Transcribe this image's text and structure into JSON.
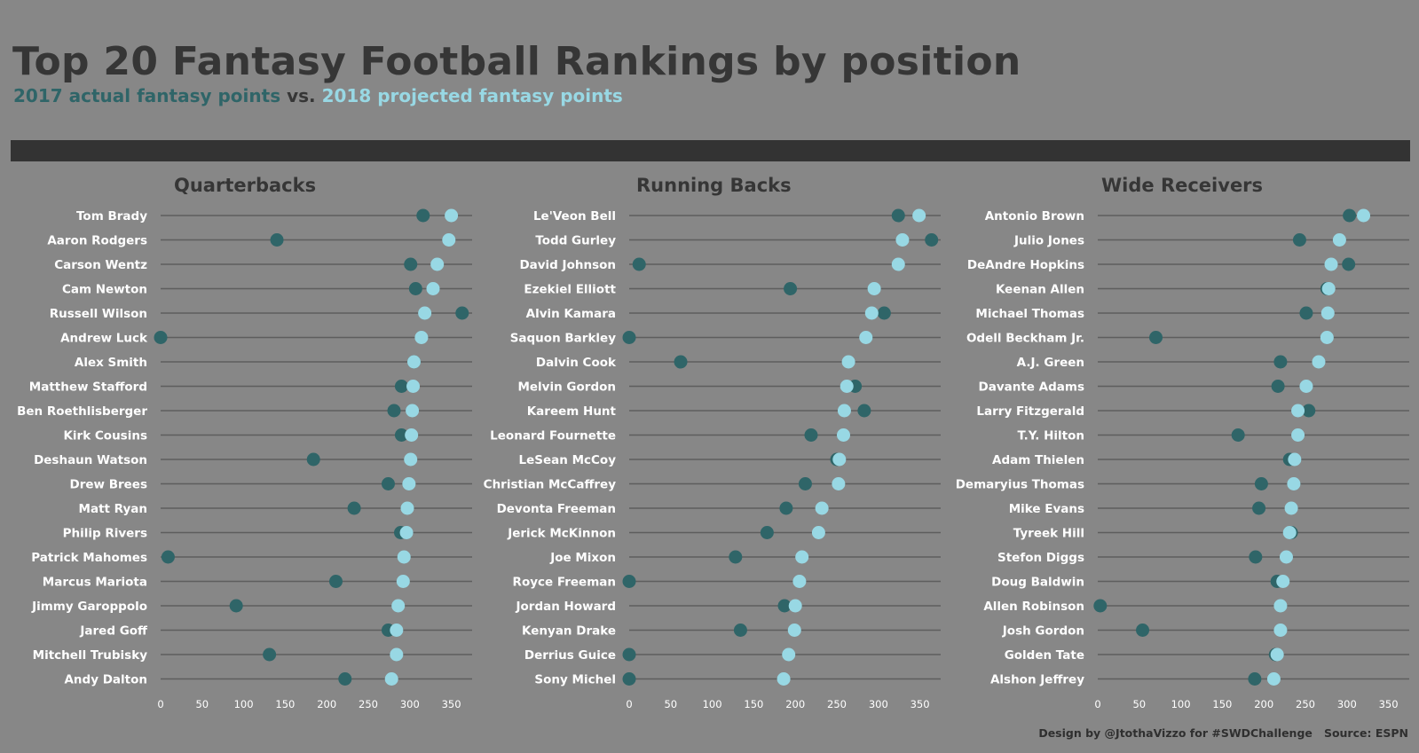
{
  "header": {
    "title": "Top 20 Fantasy Football Rankings by position",
    "subtitle_part1": "2017 actual fantasy points",
    "subtitle_sep": " vs. ",
    "subtitle_part2": "2018 projected fantasy points"
  },
  "colors": {
    "background": "#878787",
    "band": "#333333",
    "actual_2017": "#2f6568",
    "projected_2018": "#98d8e4",
    "title_text": "#363636",
    "line": "#5e5e5e",
    "label_text": "#ffffff"
  },
  "footer": {
    "credit": "Design by @JtothaVizzo for #SWDChallenge",
    "source": "Source: ESPN"
  },
  "chart_data": [
    {
      "type": "dot",
      "title": "Quarterbacks",
      "xlim": [
        0,
        375
      ],
      "xticks": [
        0,
        50,
        100,
        150,
        200,
        250,
        300,
        350
      ],
      "categories": [
        "Tom Brady",
        "Aaron Rodgers",
        "Carson Wentz",
        "Cam Newton",
        "Russell Wilson",
        "Andrew Luck",
        "Alex Smith",
        "Matthew Stafford",
        "Ben Roethlisberger",
        "Kirk Cousins",
        "Deshaun Watson",
        "Drew Brees",
        "Matt Ryan",
        "Philip Rivers",
        "Patrick Mahomes",
        "Marcus Mariota",
        "Jimmy Garoppolo",
        "Jared Goff",
        "Mitchell Trubisky",
        "Andy Dalton"
      ],
      "series": [
        {
          "name": "2017 actual fantasy points",
          "values": [
            316,
            140,
            301,
            307,
            363,
            0,
            305,
            290,
            281,
            290,
            184,
            274,
            233,
            289,
            9,
            211,
            91,
            274,
            131,
            222
          ]
        },
        {
          "name": "2018 projected fantasy points",
          "values": [
            350,
            347,
            333,
            328,
            318,
            314,
            305,
            304,
            303,
            302,
            301,
            299,
            297,
            296,
            293,
            292,
            286,
            284,
            284,
            278
          ]
        }
      ]
    },
    {
      "type": "dot",
      "title": "Running Backs",
      "xlim": [
        0,
        375
      ],
      "xticks": [
        0,
        50,
        100,
        150,
        200,
        250,
        300,
        350
      ],
      "categories": [
        "Le'Veon Bell",
        "Todd Gurley",
        "David Johnson",
        "Ezekiel Elliott",
        "Alvin Kamara",
        "Saquon Barkley",
        "Dalvin Cook",
        "Melvin Gordon",
        "Kareem Hunt",
        "Leonard Fournette",
        "LeSean McCoy",
        "Christian McCaffrey",
        "Devonta Freeman",
        "Jerick McKinnon",
        "Joe Mixon",
        "Royce Freeman",
        "Jordan Howard",
        "Kenyan Drake",
        "Derrius Guice",
        "Sony Michel"
      ],
      "series": [
        {
          "name": "2017 actual fantasy points",
          "values": [
            324,
            364,
            12,
            194,
            307,
            0,
            62,
            272,
            283,
            219,
            250,
            212,
            189,
            166,
            128,
            0,
            187,
            134,
            0,
            0
          ]
        },
        {
          "name": "2018 projected fantasy points",
          "values": [
            349,
            329,
            324,
            295,
            292,
            285,
            264,
            262,
            259,
            258,
            253,
            252,
            232,
            228,
            208,
            205,
            200,
            199,
            192,
            186
          ]
        }
      ]
    },
    {
      "type": "dot",
      "title": "Wide Receivers",
      "xlim": [
        0,
        375
      ],
      "xticks": [
        0,
        50,
        100,
        150,
        200,
        250,
        300,
        350
      ],
      "categories": [
        "Antonio Brown",
        "Julio Jones",
        "DeAndre Hopkins",
        "Keenan Allen",
        "Michael Thomas",
        "Odell Beckham Jr.",
        "A.J. Green",
        "Davante Adams",
        "Larry Fitzgerald",
        "T.Y. Hilton",
        "Adam Thielen",
        "Demaryius Thomas",
        "Mike Evans",
        "Tyreek Hill",
        "Stefon Diggs",
        "Doug Baldwin",
        "Allen Robinson",
        "Josh Gordon",
        "Golden Tate",
        "Alshon Jeffrey"
      ],
      "series": [
        {
          "name": "2017 actual fantasy points",
          "values": [
            303,
            243,
            302,
            276,
            251,
            70,
            220,
            217,
            254,
            169,
            231,
            197,
            194,
            233,
            190,
            216,
            3,
            54,
            214,
            189
          ]
        },
        {
          "name": "2018 projected fantasy points",
          "values": [
            320,
            291,
            281,
            278,
            277,
            276,
            266,
            251,
            241,
            241,
            237,
            236,
            233,
            231,
            227,
            223,
            220,
            220,
            216,
            212
          ]
        }
      ]
    }
  ]
}
